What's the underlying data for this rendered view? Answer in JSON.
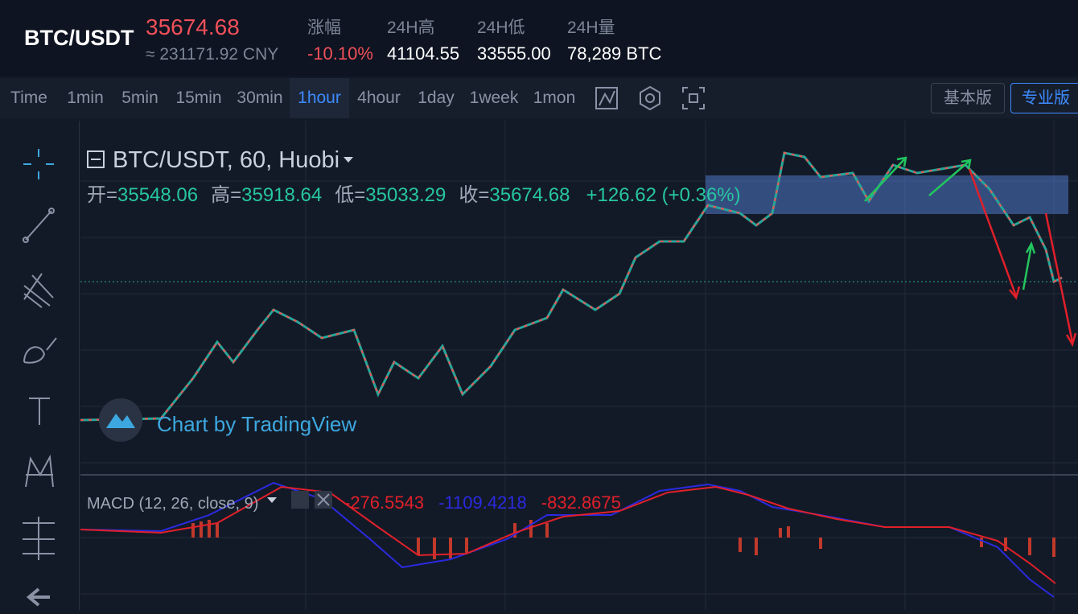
{
  "header": {
    "pair": "BTC/USDT",
    "price": "35674.68",
    "price_cny": "≈ 231171.92 CNY",
    "stats": [
      {
        "label": "涨幅",
        "value": "-10.10%"
      },
      {
        "label": "24H高",
        "value": "41104.55"
      },
      {
        "label": "24H低",
        "value": "33555.00"
      },
      {
        "label": "24H量",
        "value": "78,289 BTC"
      }
    ]
  },
  "toolbar": {
    "intervals": [
      "Time",
      "1min",
      "5min",
      "15min",
      "30min",
      "1hour",
      "4hour",
      "1day",
      "1week",
      "1mon"
    ],
    "active": "1hour",
    "versions": [
      "基本版",
      "专业版"
    ],
    "active_version": "专业版"
  },
  "chart": {
    "symbol": "BTC/USDT, 60, Huobi",
    "ohlc": [
      {
        "label": "开=",
        "value": "35548.06"
      },
      {
        "label": "高=",
        "value": "35918.64"
      },
      {
        "label": "低=",
        "value": "35033.29"
      },
      {
        "label": "收=",
        "value": "35674.68"
      }
    ],
    "change": "+126.62 (+0.36%)",
    "watermark": "Chart by TradingView"
  },
  "macd": {
    "label": "MACD (12, 26, close, 9)",
    "values": [
      {
        "value": "-276.5543",
        "color": "#e0202a"
      },
      {
        "value": "-1109.4218",
        "color": "#2a2ae0"
      },
      {
        "value": "-832.8675",
        "color": "#e0202a"
      }
    ]
  }
}
